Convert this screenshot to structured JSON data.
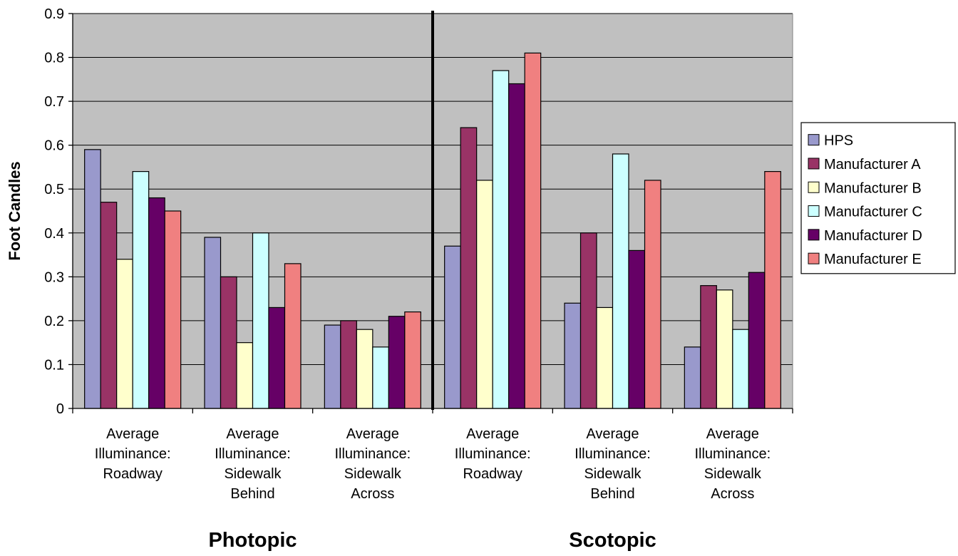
{
  "chart_data": {
    "type": "bar",
    "ylabel": "Foot Candles",
    "xlabel": "",
    "ylim": [
      0,
      0.9
    ],
    "yticks": [
      0,
      0.1,
      0.2,
      0.3,
      0.4,
      0.5,
      0.6,
      0.7,
      0.8,
      0.9
    ],
    "ytick_labels": [
      "0",
      "0.1",
      "0.2",
      "0.3",
      "0.4",
      "0.5",
      "0.6",
      "0.7",
      "0.8",
      "0.9"
    ],
    "grid": true,
    "legend_position": "right",
    "plot_background": "#c0c0c0",
    "categories": [
      "Average Illuminance: Roadway",
      "Average Illuminance: Sidewalk Behind",
      "Average Illuminance: Sidewalk Across",
      "Average Illuminance: Roadway",
      "Average Illuminance: Sidewalk Behind",
      "Average Illuminance: Sidewalk Across"
    ],
    "category_label_lines": [
      [
        "Average",
        "Illuminance:",
        "Roadway"
      ],
      [
        "Average",
        "Illuminance:",
        "Sidewalk",
        "Behind"
      ],
      [
        "Average",
        "Illuminance:",
        "Sidewalk",
        "Across"
      ],
      [
        "Average",
        "Illuminance:",
        "Roadway"
      ],
      [
        "Average",
        "Illuminance:",
        "Sidewalk",
        "Behind"
      ],
      [
        "Average",
        "Illuminance:",
        "Sidewalk",
        "Across"
      ]
    ],
    "groups": [
      {
        "label": "Photopic",
        "categories": [
          0,
          1,
          2
        ]
      },
      {
        "label": "Scotopic",
        "categories": [
          3,
          4,
          5
        ]
      }
    ],
    "series": [
      {
        "name": "HPS",
        "color": "#9999cc",
        "values": [
          0.59,
          0.39,
          0.19,
          0.37,
          0.24,
          0.14
        ]
      },
      {
        "name": "Manufacturer A",
        "color": "#993366",
        "values": [
          0.47,
          0.3,
          0.2,
          0.64,
          0.4,
          0.28
        ]
      },
      {
        "name": "Manufacturer B",
        "color": "#ffffcc",
        "values": [
          0.34,
          0.15,
          0.18,
          0.52,
          0.23,
          0.27
        ]
      },
      {
        "name": "Manufacturer C",
        "color": "#ccffff",
        "values": [
          0.54,
          0.4,
          0.14,
          0.77,
          0.58,
          0.18
        ]
      },
      {
        "name": "Manufacturer D",
        "color": "#660066",
        "values": [
          0.48,
          0.23,
          0.21,
          0.74,
          0.36,
          0.31
        ]
      },
      {
        "name": "Manufacturer E",
        "color": "#f08080",
        "values": [
          0.45,
          0.33,
          0.22,
          0.81,
          0.52,
          0.54
        ]
      }
    ]
  }
}
